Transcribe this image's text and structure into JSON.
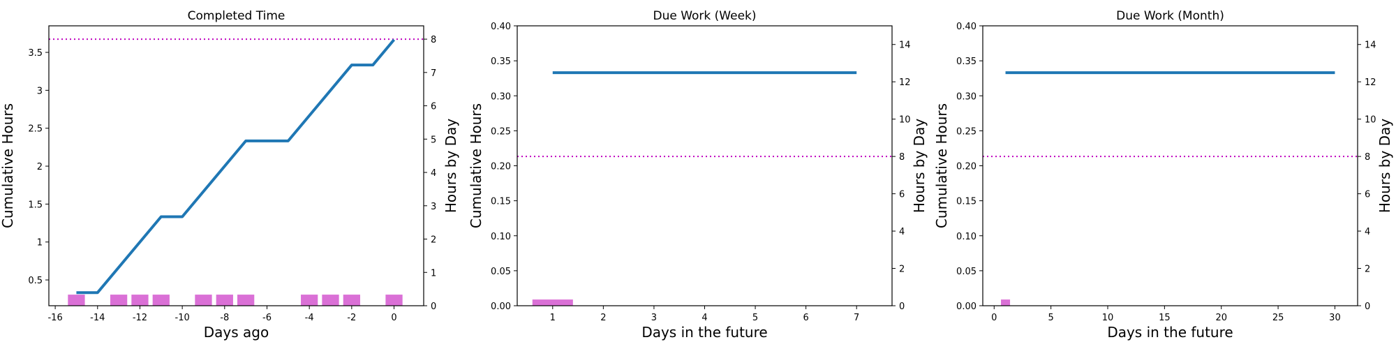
{
  "colors": {
    "line": "#1f77b4",
    "bar": "#da70d6",
    "reference": "#bf00bf",
    "axes": "#000000",
    "background": "#ffffff"
  },
  "chart_data": [
    {
      "type": "line",
      "title": "Completed Time",
      "xlabel": "Days ago",
      "ylabel": "Cumulative Hours",
      "ylabel_right": "Hours by Day",
      "xlim": [
        -16.3,
        1.4
      ],
      "ylim": [
        0.16,
        3.85
      ],
      "ylim_right": [
        0,
        8.4
      ],
      "xticks": [
        -16,
        -14,
        -12,
        -10,
        -8,
        -6,
        -4,
        -2,
        0
      ],
      "yticks": [
        0.5,
        1.0,
        1.5,
        2.0,
        2.5,
        3.0,
        3.5
      ],
      "yticks_right": [
        0,
        1,
        2,
        3,
        4,
        5,
        6,
        7,
        8
      ],
      "reference_line_right": 8,
      "series": [
        {
          "type": "line",
          "axis": "left",
          "x": [
            -15,
            -14,
            -11,
            -10,
            -7,
            -5,
            -2,
            -1,
            0
          ],
          "y": [
            0.333,
            0.333,
            1.333,
            1.333,
            2.333,
            2.333,
            3.333,
            3.333,
            3.667
          ]
        },
        {
          "type": "bar",
          "axis": "right",
          "x": [
            -15,
            -13,
            -12,
            -11,
            -9,
            -8,
            -7,
            -4,
            -3,
            -2,
            0
          ],
          "y": [
            0.333,
            0.333,
            0.333,
            0.333,
            0.333,
            0.333,
            0.333,
            0.333,
            0.333,
            0.333,
            0.333
          ]
        }
      ]
    },
    {
      "type": "line",
      "title": "Due Work (Week)",
      "xlabel": "Days in the future",
      "ylabel": "Cumulative Hours",
      "ylabel_right": "Hours by Day",
      "xlim": [
        0.3,
        7.7
      ],
      "ylim": [
        0,
        0.4
      ],
      "ylim_right": [
        0,
        15
      ],
      "xticks": [
        1,
        2,
        3,
        4,
        5,
        6,
        7
      ],
      "yticks": [
        "0.00",
        "0.05",
        "0.10",
        "0.15",
        "0.20",
        "0.25",
        "0.30",
        "0.35",
        "0.40"
      ],
      "yticks_right": [
        0,
        2,
        4,
        6,
        8,
        10,
        12,
        14
      ],
      "reference_line_right": 8,
      "series": [
        {
          "type": "line",
          "axis": "left",
          "x": [
            1,
            2,
            3,
            4,
            5,
            6,
            7
          ],
          "y": [
            0.333,
            0.333,
            0.333,
            0.333,
            0.333,
            0.333,
            0.333
          ]
        },
        {
          "type": "bar",
          "axis": "right",
          "x": [
            1
          ],
          "y": [
            0.333
          ]
        }
      ]
    },
    {
      "type": "line",
      "title": "Due Work (Month)",
      "xlabel": "Days in the future",
      "ylabel": "Cumulative Hours",
      "ylabel_right": "Hours by Day",
      "xlim": [
        -1.0,
        32.0
      ],
      "ylim": [
        0,
        0.4
      ],
      "ylim_right": [
        0,
        15
      ],
      "xticks": [
        0,
        5,
        10,
        15,
        20,
        25,
        30
      ],
      "yticks": [
        "0.00",
        "0.05",
        "0.10",
        "0.15",
        "0.20",
        "0.25",
        "0.30",
        "0.35",
        "0.40"
      ],
      "yticks_right": [
        0,
        2,
        4,
        6,
        8,
        10,
        12,
        14
      ],
      "reference_line_right": 8,
      "series": [
        {
          "type": "line",
          "axis": "left",
          "x": [
            1,
            5,
            10,
            15,
            20,
            25,
            30
          ],
          "y": [
            0.333,
            0.333,
            0.333,
            0.333,
            0.333,
            0.333,
            0.333
          ]
        },
        {
          "type": "bar",
          "axis": "right",
          "x": [
            1
          ],
          "y": [
            0.333
          ]
        }
      ]
    }
  ]
}
